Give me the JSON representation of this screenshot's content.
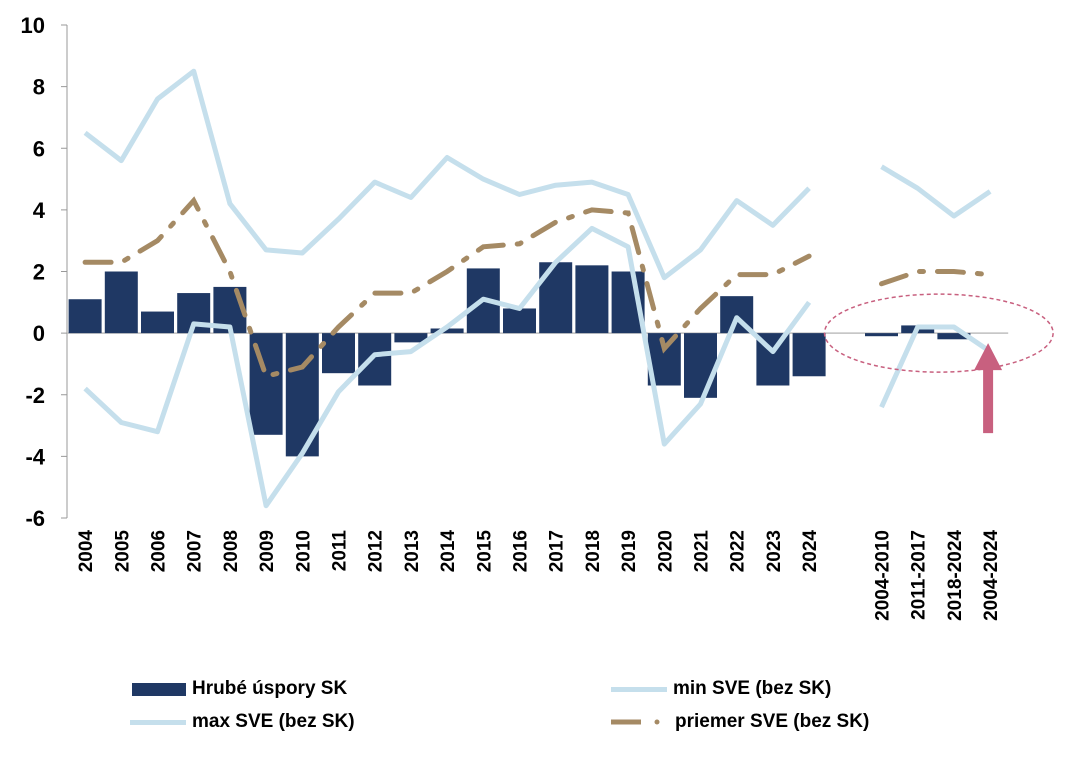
{
  "chart_data": {
    "type": "bar",
    "categories": [
      "2004",
      "2005",
      "2006",
      "2007",
      "2008",
      "2009",
      "2010",
      "2011",
      "2012",
      "2013",
      "2014",
      "2015",
      "2016",
      "2017",
      "2018",
      "2019",
      "2020",
      "2021",
      "2022",
      "2023",
      "2024",
      "",
      "2004-2010",
      "2011-2017",
      "2018-2024",
      "2004-2024"
    ],
    "ylim": [
      -6,
      10
    ],
    "yticks": [
      "-6",
      "-4",
      "-2",
      "0",
      "2",
      "4",
      "6",
      "8",
      "10"
    ],
    "series": [
      {
        "name": "Hrubé úspory SK",
        "kind": "bar",
        "values": [
          1.1,
          2.0,
          0.7,
          1.3,
          1.5,
          -3.3,
          -4.0,
          -1.3,
          -1.7,
          -0.3,
          0.15,
          2.1,
          0.8,
          2.3,
          2.2,
          2.0,
          -1.7,
          -2.1,
          1.2,
          -1.7,
          -1.4,
          null,
          -0.1,
          0.25,
          -0.2,
          null
        ]
      },
      {
        "name": "min SVE (bez SK)",
        "kind": "line",
        "values": [
          -1.8,
          -2.9,
          -3.2,
          0.3,
          0.2,
          -5.6,
          -3.9,
          -1.9,
          -0.7,
          -0.6,
          0.2,
          1.1,
          0.8,
          2.3,
          3.4,
          2.8,
          -3.6,
          -2.3,
          0.5,
          -0.6,
          1.0,
          null,
          -2.4,
          0.2,
          0.2,
          -0.6
        ]
      },
      {
        "name": "max SVE (bez SK)",
        "kind": "line",
        "values": [
          6.5,
          5.6,
          7.6,
          8.5,
          4.2,
          2.7,
          2.6,
          3.7,
          4.9,
          4.4,
          5.7,
          5.0,
          4.5,
          4.8,
          4.9,
          4.5,
          1.8,
          2.7,
          4.3,
          3.5,
          4.7,
          null,
          5.4,
          4.7,
          3.8,
          4.6
        ]
      },
      {
        "name": "priemer SVE (bez SK)",
        "kind": "dashdot",
        "values": [
          2.3,
          2.3,
          3.0,
          4.3,
          2.0,
          -1.4,
          -1.1,
          0.2,
          1.3,
          1.3,
          2.0,
          2.8,
          2.9,
          3.6,
          4.0,
          3.9,
          -0.5,
          0.8,
          1.9,
          1.9,
          2.5,
          null,
          1.6,
          2.0,
          2.0,
          1.9
        ]
      }
    ],
    "legend": [
      {
        "label": "Hrubé úspory SK",
        "series": 0
      },
      {
        "label": "min SVE (bez SK)",
        "series": 1
      },
      {
        "label": "max SVE (bez SK)",
        "series": 2
      },
      {
        "label": "priemer SVE (bez SK)",
        "series": 3
      }
    ],
    "colors": {
      "bar": "#1f3864",
      "min": "#c5dfec",
      "max": "#c5dfec",
      "avg": "#a58a64",
      "highlight": "#c8607f"
    },
    "annotations": {
      "ellipse_categories": [
        "2004-2010",
        "2004-2024"
      ],
      "arrow_category": "2004-2024"
    }
  }
}
